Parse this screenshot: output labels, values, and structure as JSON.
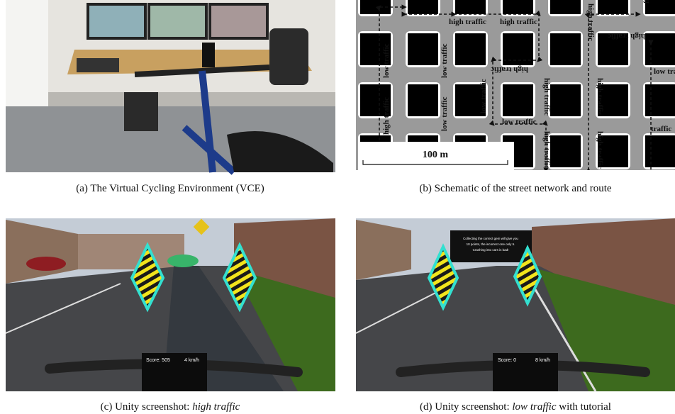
{
  "figure": {
    "panels": [
      {
        "caption": {
          "text": "(a) The Virtual Cycling Environment (VCE)"
        }
      },
      {
        "caption": {
          "text": "(b)  Schematic of the street network and route"
        },
        "labels": [
          "high traffic",
          "high traffic",
          "low traffic",
          "low traffic",
          "high traffic",
          "high traffic",
          "low traffic",
          "low traffic",
          "high traffic",
          "low traffic",
          "high traffic",
          "high traffic",
          "high traffic",
          "low traffic",
          "traffic",
          "ffic",
          "high traffic",
          "high traffic"
        ],
        "scale_bar": "100 m"
      },
      {
        "caption": {
          "prefix": "(c) Unity screenshot: ",
          "emphasis": "high traffic"
        },
        "hud": {
          "score": "Score: 505",
          "speed": "4 km/h"
        }
      },
      {
        "caption": {
          "prefix": "(d) Unity screenshot: ",
          "emphasis": "low traffic",
          "suffix": " with tutorial"
        },
        "hud": {
          "score": "Score: 0",
          "speed": "8 km/h"
        },
        "tutorial": [
          "Collecting the correct gem will give you",
          "10 points, the incorrect one only 5.",
          "Crashing into cars is bad!"
        ]
      }
    ]
  }
}
